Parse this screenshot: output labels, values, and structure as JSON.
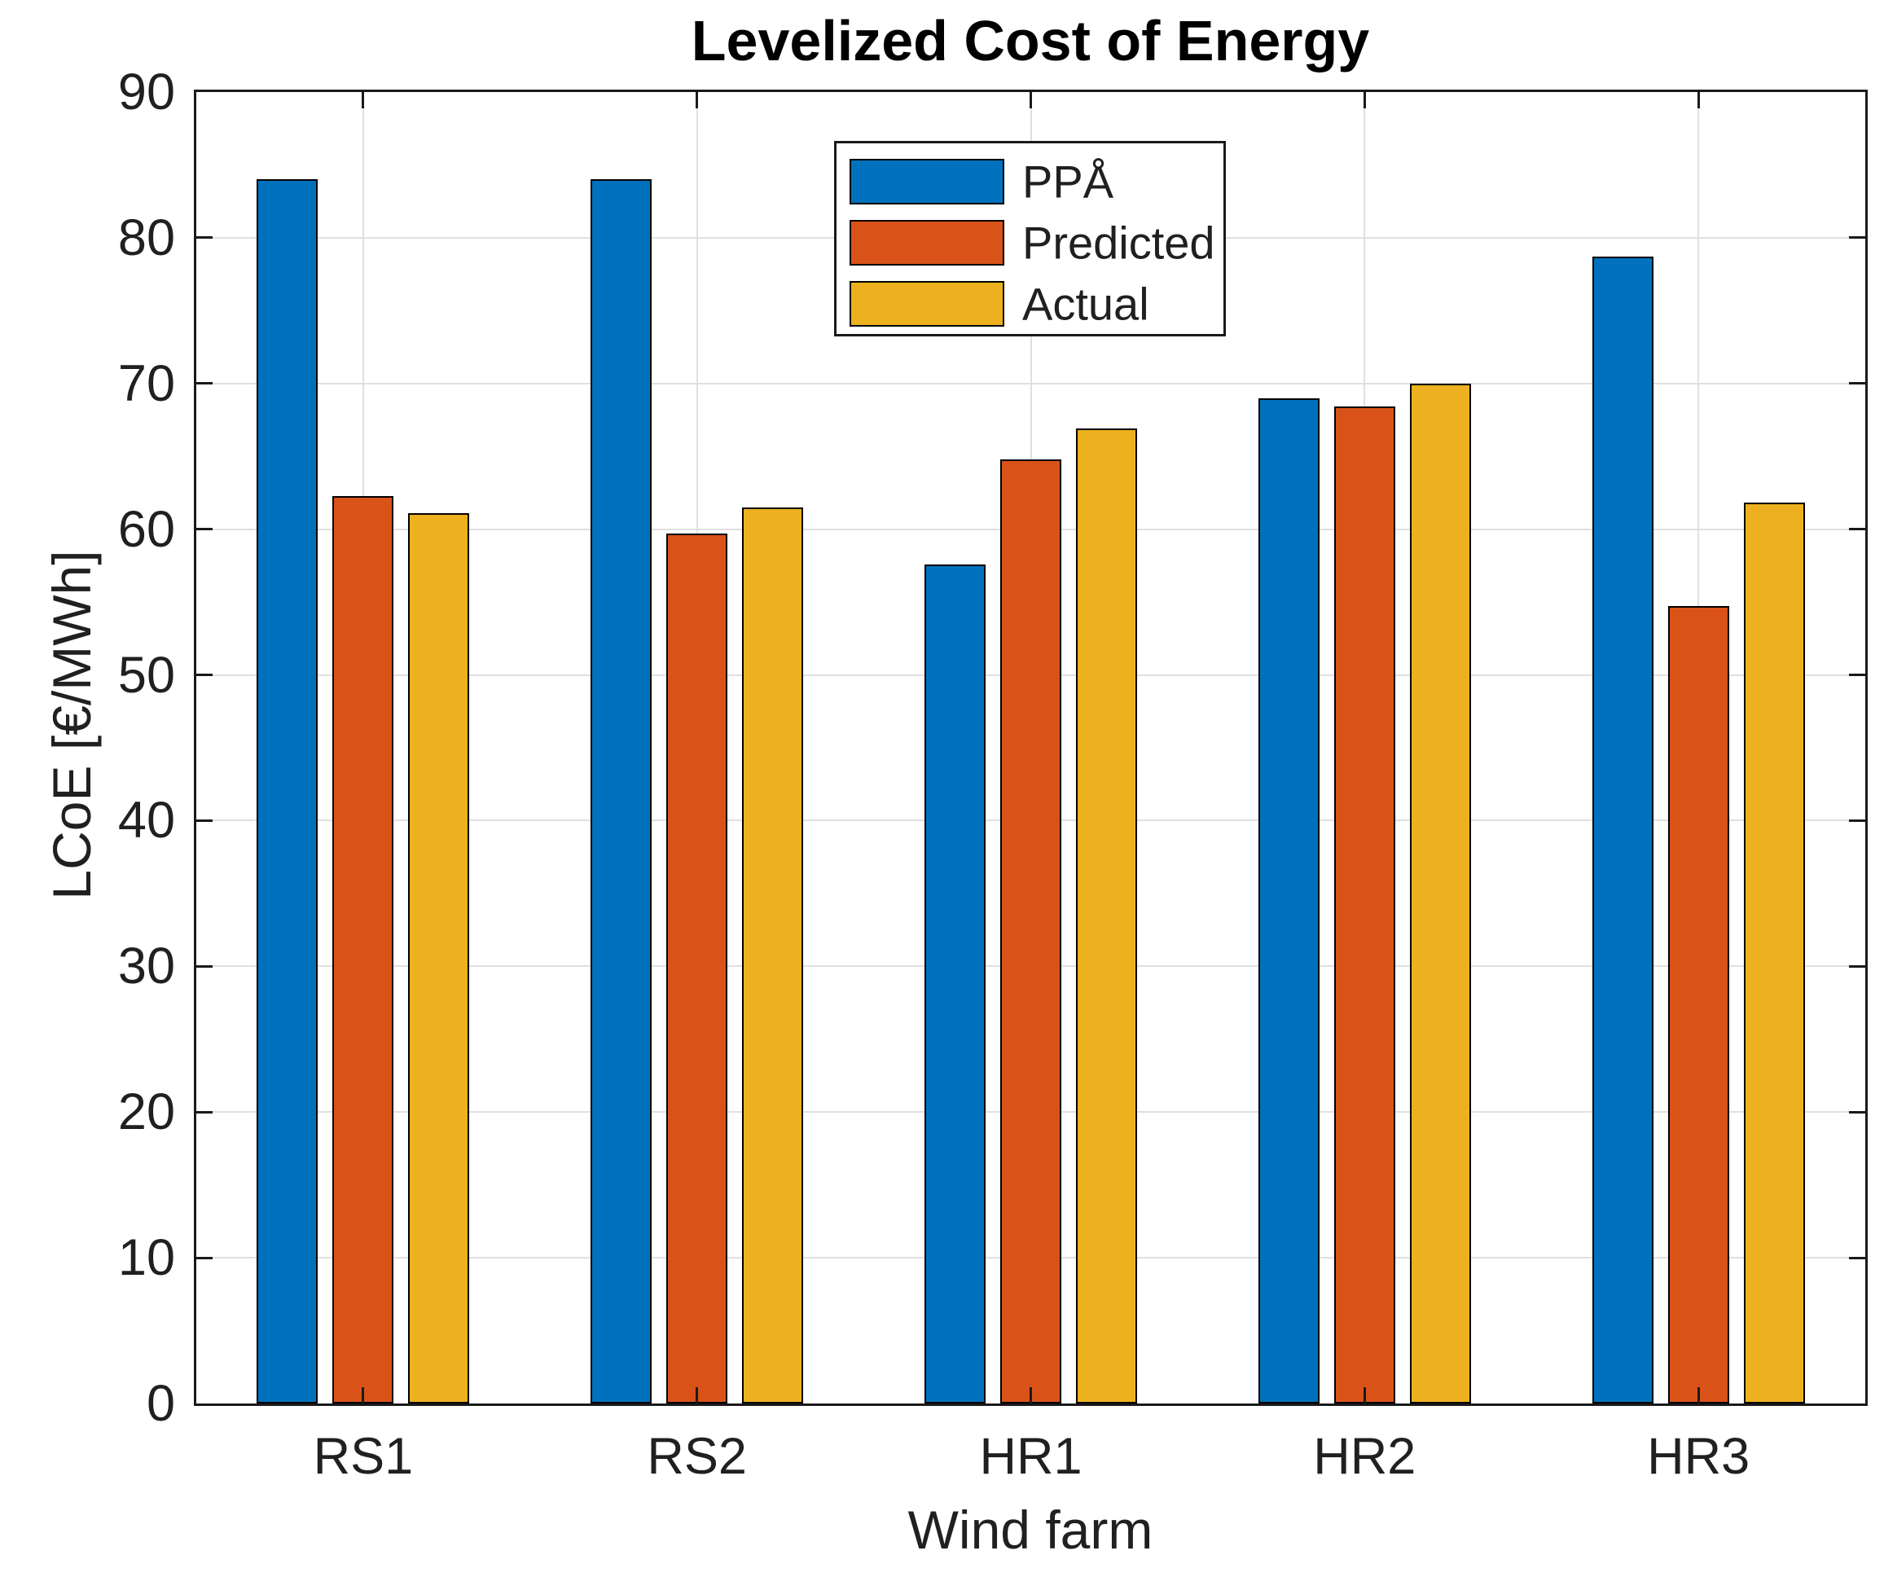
{
  "chart_data": {
    "type": "bar",
    "title": "Levelized Cost of Energy",
    "xlabel": "Wind farm",
    "ylabel": "LCoE [€/MWh]",
    "categories": [
      "RS1",
      "RS2",
      "HR1",
      "HR2",
      "HR3"
    ],
    "series": [
      {
        "name": "PPÅ",
        "color": "#0072BD",
        "values": [
          84.0,
          84.0,
          57.6,
          69.0,
          78.7
        ]
      },
      {
        "name": "Predicted",
        "color": "#D95319",
        "values": [
          62.3,
          59.7,
          64.8,
          68.4,
          54.7
        ]
      },
      {
        "name": "Actual",
        "color": "#EDB120",
        "values": [
          61.1,
          61.5,
          66.9,
          70.0,
          61.8
        ]
      }
    ],
    "ylim": [
      0,
      90
    ],
    "yticks": [
      0,
      10,
      20,
      30,
      40,
      50,
      60,
      70,
      80,
      90
    ],
    "grid": true,
    "legend_position": "north",
    "bar_edge_color": "#000000",
    "axis_color": "#1a1a1a",
    "grid_color": "#e0e0e0",
    "tick_label_color": "#202020"
  }
}
